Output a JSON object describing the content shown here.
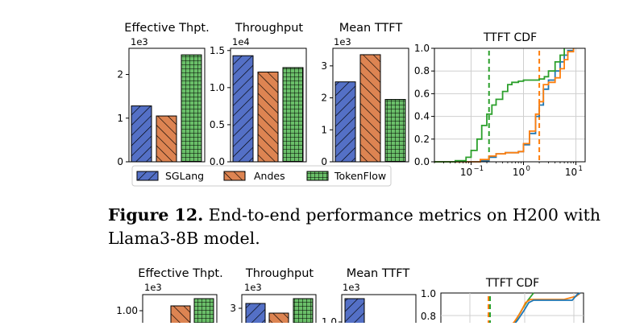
{
  "figure12": {
    "panels": [
      {
        "title": "Effective Thpt.",
        "exponent": "1e3",
        "ticks": [
          "0",
          "1",
          "2"
        ]
      },
      {
        "title": "Throughput",
        "exponent": "1e4",
        "ticks": [
          "0.0",
          "0.5",
          "1.0",
          "1.5"
        ]
      },
      {
        "title": "Mean TTFT",
        "exponent": "1e3",
        "ticks": [
          "0",
          "1",
          "2",
          "3"
        ]
      }
    ],
    "cdf": {
      "title": "TTFT CDF",
      "yticks": [
        "0.0",
        "0.2",
        "0.4",
        "0.6",
        "0.8",
        "1.0"
      ],
      "xticks": [
        "10",
        "10",
        "10"
      ],
      "xtick_exps": [
        "−1",
        "0",
        "1"
      ]
    },
    "legend": [
      "SGLang",
      "Andes",
      "TokenFlow"
    ],
    "caption_label": "Figure 12.",
    "caption_text": " End-to-end performance metrics on H200 with Llama3-8B model."
  },
  "figure13_partial": {
    "panels": [
      {
        "title": "Effective Thpt.",
        "exponent": "1e3",
        "ticks": [
          "1.00"
        ]
      },
      {
        "title": "Throughput",
        "exponent": "1e3",
        "ticks": [
          "3"
        ]
      },
      {
        "title": "Mean TTFT",
        "exponent": "1e3",
        "ticks": [
          "1.0"
        ]
      }
    ],
    "cdf": {
      "title": "TTFT CDF",
      "yticks": [
        "1.0",
        "0.8"
      ]
    }
  },
  "colors": {
    "SGLang": "#5470c6",
    "Andes": "#dd8452",
    "TokenFlow": "#6abf69",
    "sglang_line": "#1f77b4",
    "andes_line": "#ff7f0e",
    "tokenflow_line": "#2ca02c"
  },
  "chart_data": [
    {
      "type": "bar",
      "title": "Effective Thpt.",
      "categories": [
        "SGLang",
        "Andes",
        "TokenFlow"
      ],
      "values": [
        1280,
        1050,
        2450
      ],
      "ylim": [
        0,
        2600
      ],
      "unit_exponent": "1e3"
    },
    {
      "type": "bar",
      "title": "Throughput",
      "categories": [
        "SGLang",
        "Andes",
        "TokenFlow"
      ],
      "values": [
        14300,
        12100,
        12700
      ],
      "ylim": [
        0,
        15300
      ],
      "unit_exponent": "1e4"
    },
    {
      "type": "bar",
      "title": "Mean TTFT",
      "categories": [
        "SGLang",
        "Andes",
        "TokenFlow"
      ],
      "values": [
        2500,
        3350,
        1950
      ],
      "ylim": [
        0,
        3550
      ],
      "unit_exponent": "1e3"
    },
    {
      "type": "line",
      "title": "TTFT CDF",
      "xscale": "log",
      "xlim": [
        0.02,
        15
      ],
      "ylim": [
        0,
        1
      ],
      "grid": true,
      "series": [
        {
          "name": "SGLang",
          "x": [
            0.02,
            0.07,
            0.15,
            0.22,
            0.3,
            0.45,
            0.6,
            0.8,
            1.0,
            1.3,
            1.7,
            2.0,
            2.4,
            3.0,
            4.0,
            5.0,
            6.0,
            7.0,
            9.0
          ],
          "y": [
            0.0,
            0.0,
            0.01,
            0.04,
            0.07,
            0.08,
            0.08,
            0.09,
            0.15,
            0.25,
            0.4,
            0.5,
            0.64,
            0.72,
            0.8,
            0.88,
            0.94,
            0.98,
            1.0
          ]
        },
        {
          "name": "Andes",
          "x": [
            0.02,
            0.07,
            0.15,
            0.22,
            0.3,
            0.45,
            0.6,
            0.8,
            1.0,
            1.3,
            1.7,
            2.0,
            2.4,
            3.0,
            4.0,
            5.0,
            6.0,
            7.0,
            9.0
          ],
          "y": [
            0.0,
            0.0,
            0.02,
            0.05,
            0.07,
            0.08,
            0.08,
            0.09,
            0.16,
            0.27,
            0.42,
            0.53,
            0.68,
            0.7,
            0.74,
            0.82,
            0.9,
            0.97,
            1.0
          ]
        },
        {
          "name": "TokenFlow",
          "x": [
            0.02,
            0.05,
            0.08,
            0.1,
            0.13,
            0.16,
            0.2,
            0.25,
            0.3,
            0.4,
            0.5,
            0.6,
            0.8,
            1.0,
            1.5,
            2.0,
            2.5,
            3.0,
            4.0,
            5.0,
            6.0
          ],
          "y": [
            0.0,
            0.01,
            0.04,
            0.1,
            0.2,
            0.32,
            0.42,
            0.5,
            0.55,
            0.62,
            0.68,
            0.7,
            0.71,
            0.72,
            0.72,
            0.73,
            0.75,
            0.8,
            0.88,
            0.94,
            1.0
          ]
        }
      ],
      "vlines": [
        {
          "series": "TokenFlow",
          "x": 0.22
        },
        {
          "series": "Andes",
          "x": 2.0
        }
      ]
    }
  ]
}
